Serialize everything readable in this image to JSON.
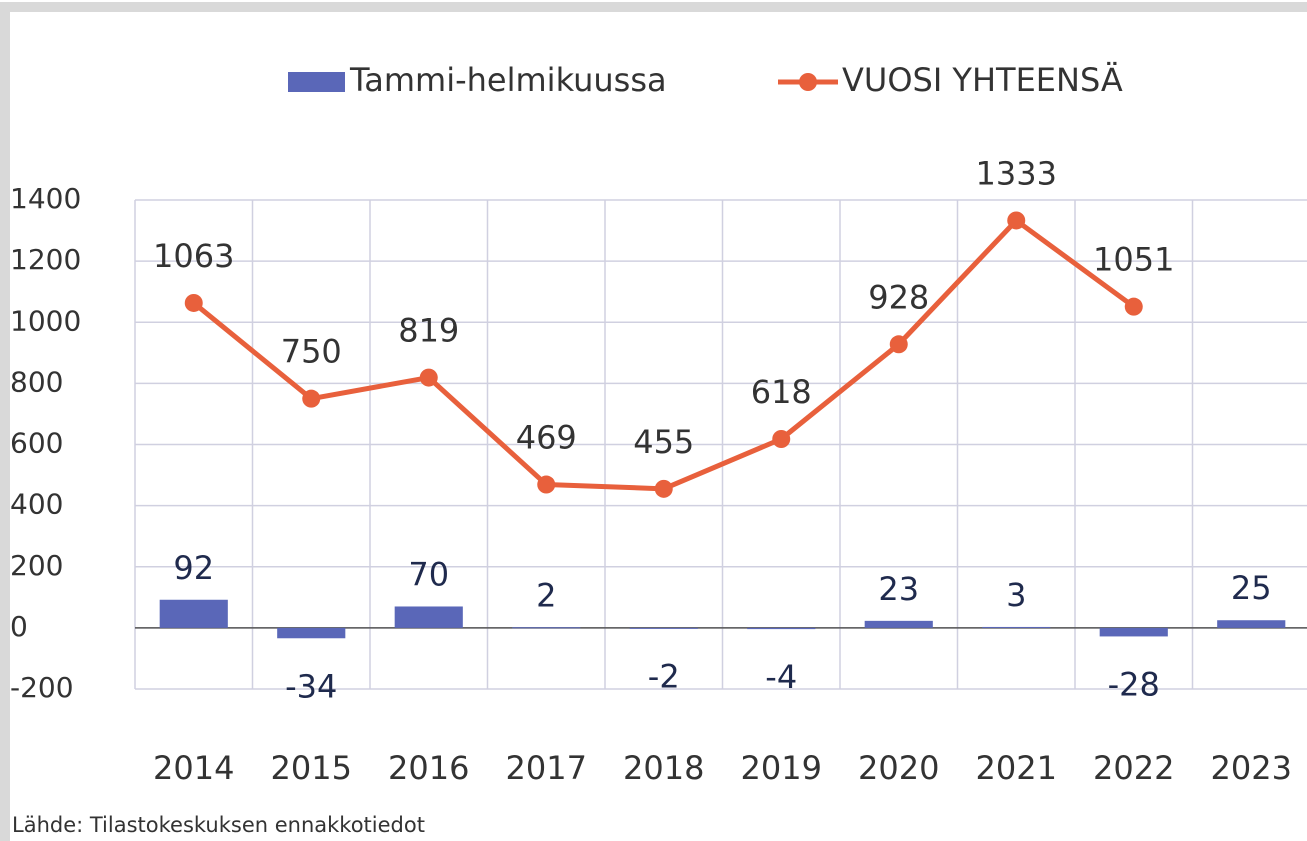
{
  "chart_data": {
    "type": "bar_line",
    "categories": [
      "2014",
      "2015",
      "2016",
      "2017",
      "2018",
      "2019",
      "2020",
      "2021",
      "2022",
      "2023"
    ],
    "series": [
      {
        "name": "Tammi-helmikuussa",
        "color": "#5a67b8",
        "type": "bar",
        "values": [
          92,
          -34,
          70,
          2,
          -2,
          -4,
          23,
          3,
          -28,
          25
        ]
      },
      {
        "name": "VUOSI YHTEENSÄ",
        "color": "#e8603c",
        "type": "line",
        "values": [
          1063,
          750,
          819,
          469,
          455,
          618,
          928,
          1333,
          1051,
          null
        ]
      }
    ],
    "ylim": [
      -200,
      1400
    ],
    "yticks": [
      -200,
      0,
      200,
      400,
      600,
      800,
      1000,
      1200,
      1400
    ],
    "grid": true,
    "legend": "top",
    "source": "Lähde: Tilastokeskuksen ennakkotiedot"
  }
}
